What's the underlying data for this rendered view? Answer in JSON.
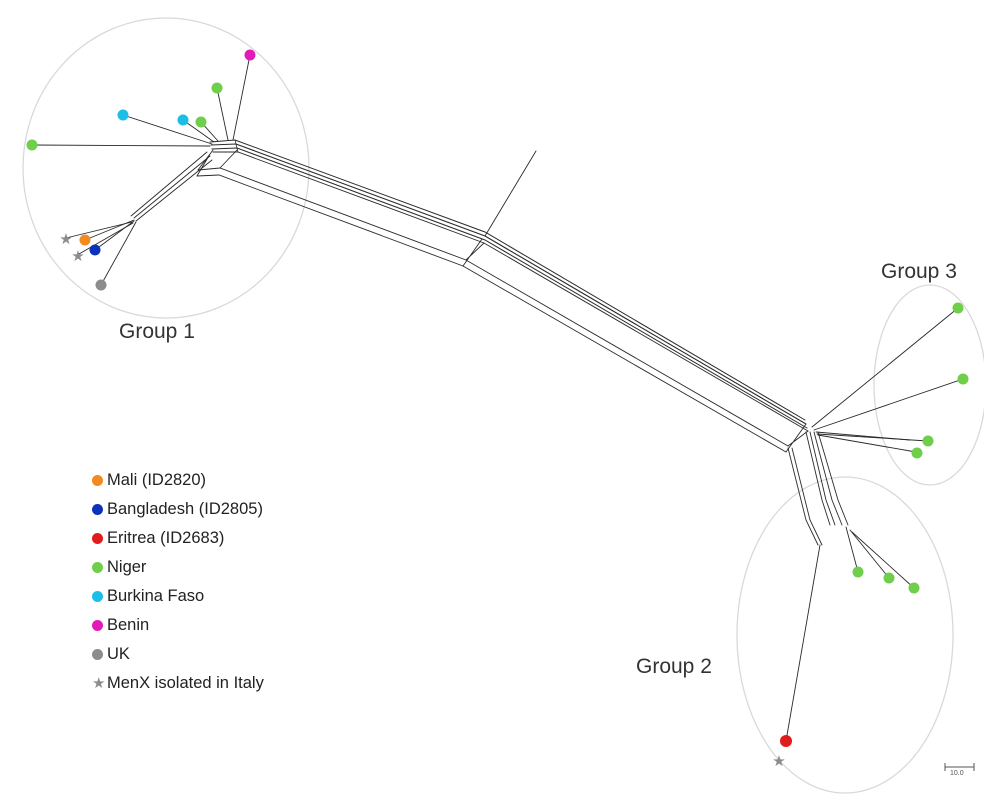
{
  "colors": {
    "mali": "#f28a22",
    "bangladesh": "#0b32b8",
    "eritrea": "#e11c1c",
    "niger": "#6fcf4a",
    "burkina_faso": "#1cbde6",
    "benin": "#e21ab8",
    "uk": "#8c8c8c",
    "star": "#8c8c8c",
    "edge": "#2a2a2a",
    "ellipse": "#d9d9d9"
  },
  "groups": [
    {
      "label": "Group 1"
    },
    {
      "label": "Group 2"
    },
    {
      "label": "Group 3"
    }
  ],
  "legend": {
    "items": [
      {
        "label": "Mali (ID2820)",
        "marker": "dot",
        "color": "#f28a22"
      },
      {
        "label": "Bangladesh (ID2805)",
        "marker": "dot",
        "color": "#0b32b8"
      },
      {
        "label": "Eritrea (ID2683)",
        "marker": "dot",
        "color": "#e11c1c"
      },
      {
        "label": "Niger",
        "marker": "dot",
        "color": "#6fcf4a"
      },
      {
        "label": "Burkina Faso",
        "marker": "dot",
        "color": "#1cbde6"
      },
      {
        "label": "Benin",
        "marker": "dot",
        "color": "#e21ab8"
      },
      {
        "label": "UK",
        "marker": "dot",
        "color": "#8c8c8c"
      },
      {
        "label": "MenX isolated in Italy",
        "marker": "star",
        "color": "#8c8c8c"
      }
    ]
  },
  "scale_bar": {
    "label": "10.0"
  }
}
